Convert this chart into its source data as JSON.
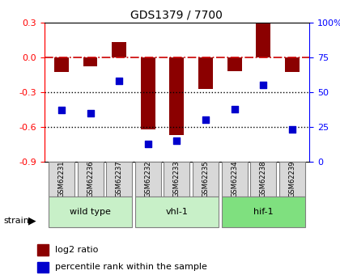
{
  "title": "GDS1379 / 7700",
  "samples": [
    "GSM62231",
    "GSM62236",
    "GSM62237",
    "GSM62232",
    "GSM62233",
    "GSM62235",
    "GSM62234",
    "GSM62238",
    "GSM62239"
  ],
  "log2_ratio": [
    -0.13,
    -0.08,
    0.13,
    -0.62,
    -0.67,
    -0.27,
    -0.12,
    0.29,
    -0.13
  ],
  "percentile_rank": [
    37,
    35,
    58,
    13,
    15,
    30,
    38,
    55,
    23
  ],
  "group_positions": [
    [
      0,
      2,
      "wild type",
      "#c8f0c8"
    ],
    [
      3,
      5,
      "vhl-1",
      "#c8f0c8"
    ],
    [
      6,
      8,
      "hif-1",
      "#7fe07f"
    ]
  ],
  "bar_color": "#8b0000",
  "dot_color": "#0000cd",
  "ylim_left": [
    -0.9,
    0.3
  ],
  "ylim_right": [
    0,
    100
  ],
  "yticks_left": [
    0.3,
    0.0,
    -0.3,
    -0.6,
    -0.9
  ],
  "yticks_right": [
    100,
    75,
    50,
    25,
    0
  ],
  "ytick_right_labels": [
    "100%",
    "75",
    "50",
    "25",
    "0"
  ],
  "hline_color": "#cc0000",
  "dotline_color": "#000000",
  "background_color": "#ffffff",
  "sample_box_color": "#d8d8d8",
  "legend_items": [
    "log2 ratio",
    "percentile rank within the sample"
  ]
}
